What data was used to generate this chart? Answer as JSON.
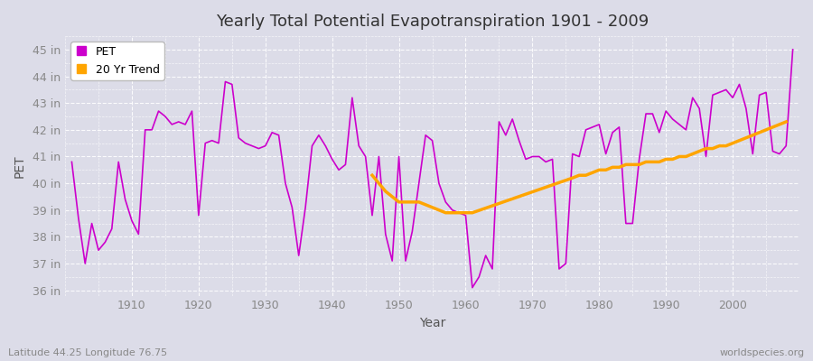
{
  "title": "Yearly Total Potential Evapotranspiration 1901 - 2009",
  "xlabel": "Year",
  "ylabel": "PET",
  "subtitle": "Latitude 44.25 Longitude 76.75",
  "watermark": "worldspecies.org",
  "years": [
    1901,
    1902,
    1903,
    1904,
    1905,
    1906,
    1907,
    1908,
    1909,
    1910,
    1911,
    1912,
    1913,
    1914,
    1915,
    1916,
    1917,
    1918,
    1919,
    1920,
    1921,
    1922,
    1923,
    1924,
    1925,
    1926,
    1927,
    1928,
    1929,
    1930,
    1931,
    1932,
    1933,
    1934,
    1935,
    1936,
    1937,
    1938,
    1939,
    1940,
    1941,
    1942,
    1943,
    1944,
    1945,
    1946,
    1947,
    1948,
    1949,
    1950,
    1951,
    1952,
    1953,
    1954,
    1955,
    1956,
    1957,
    1958,
    1959,
    1960,
    1961,
    1962,
    1963,
    1964,
    1965,
    1966,
    1967,
    1968,
    1969,
    1970,
    1971,
    1972,
    1973,
    1974,
    1975,
    1976,
    1977,
    1978,
    1979,
    1980,
    1981,
    1982,
    1983,
    1984,
    1985,
    1986,
    1987,
    1988,
    1989,
    1990,
    1991,
    1992,
    1993,
    1994,
    1995,
    1996,
    1997,
    1998,
    1999,
    2000,
    2001,
    2002,
    2003,
    2004,
    2005,
    2006,
    2007,
    2008,
    2009
  ],
  "pet": [
    40.8,
    38.7,
    37.0,
    38.5,
    37.5,
    37.8,
    38.3,
    40.8,
    39.4,
    38.6,
    38.1,
    42.0,
    42.0,
    42.7,
    42.5,
    42.2,
    42.3,
    42.2,
    42.7,
    38.8,
    41.5,
    41.6,
    41.5,
    43.8,
    43.7,
    41.7,
    41.5,
    41.4,
    41.3,
    41.4,
    41.9,
    41.8,
    40.0,
    39.1,
    37.3,
    39.1,
    41.4,
    41.8,
    41.4,
    40.9,
    40.5,
    40.7,
    43.2,
    41.4,
    41.0,
    38.8,
    41.0,
    38.1,
    37.1,
    41.0,
    37.1,
    38.2,
    40.0,
    41.8,
    41.6,
    40.0,
    39.3,
    39.0,
    38.9,
    38.8,
    36.1,
    36.5,
    37.3,
    36.8,
    42.3,
    41.8,
    42.4,
    41.6,
    40.9,
    41.0,
    41.0,
    40.8,
    40.9,
    36.8,
    37.0,
    41.1,
    41.0,
    42.0,
    42.1,
    42.2,
    41.1,
    41.9,
    42.1,
    38.5,
    38.5,
    40.9,
    42.6,
    42.6,
    41.9,
    42.7,
    42.4,
    42.2,
    42.0,
    43.2,
    42.8,
    41.0,
    43.3,
    43.4,
    43.5,
    43.2,
    43.7,
    42.8,
    41.1,
    43.3,
    43.4,
    41.2,
    41.1,
    41.4,
    45.0
  ],
  "trend_years": [
    1946,
    1947,
    1948,
    1949,
    1950,
    1951,
    1952,
    1953,
    1954,
    1955,
    1956,
    1957,
    1958,
    1959,
    1960,
    1961,
    1976,
    1977,
    1978,
    1979,
    1980,
    1981,
    1982,
    1983,
    1984,
    1985,
    1986,
    1987,
    1988,
    1989,
    1990,
    1991,
    1992,
    1993,
    1994,
    1995,
    1996,
    1997,
    1998,
    1999,
    2000,
    2001,
    2002,
    2003,
    2004,
    2005,
    2006,
    2007,
    2008
  ],
  "trend_values": [
    40.3,
    40.0,
    39.7,
    39.5,
    39.3,
    39.3,
    39.3,
    39.3,
    39.2,
    39.1,
    39.0,
    38.9,
    38.9,
    38.9,
    38.9,
    38.9,
    40.2,
    40.3,
    40.3,
    40.4,
    40.5,
    40.5,
    40.6,
    40.6,
    40.7,
    40.7,
    40.7,
    40.8,
    40.8,
    40.8,
    40.9,
    40.9,
    41.0,
    41.0,
    41.1,
    41.2,
    41.3,
    41.3,
    41.4,
    41.4,
    41.5,
    41.6,
    41.7,
    41.8,
    41.9,
    42.0,
    42.1,
    42.2,
    42.3
  ],
  "pet_color": "#CC00CC",
  "trend_color": "#FFA500",
  "bg_color": "#DCDCE8",
  "grid_color": "#FFFFFF",
  "plot_bg_color": "#DCDCE8",
  "ylim": [
    35.8,
    45.5
  ],
  "yticks": [
    36,
    37,
    38,
    39,
    40,
    41,
    42,
    43,
    44,
    45
  ],
  "ytick_labels": [
    "36 in",
    "37 in",
    "38 in",
    "39 in",
    "40 in",
    "41 in",
    "42 in",
    "43 in",
    "44 in",
    "45 in"
  ],
  "xticks": [
    1910,
    1920,
    1930,
    1940,
    1950,
    1960,
    1970,
    1980,
    1990,
    2000
  ],
  "title_fontsize": 13,
  "axis_fontsize": 10,
  "tick_fontsize": 9,
  "xlim_left": 1900,
  "xlim_right": 2010
}
